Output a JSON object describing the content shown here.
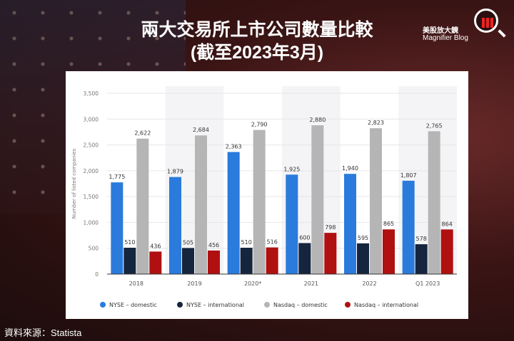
{
  "header": {
    "title_line1": "兩大交易所上市公司數量比較",
    "title_line2": "(截至2023年3月)"
  },
  "logo": {
    "cn": "美股放大鏡",
    "en": "Magnifier Blog"
  },
  "source": "資料來源：Statista",
  "chart_data": {
    "type": "bar",
    "ylabel": "Number of listed companies",
    "ylim": [
      0,
      3500
    ],
    "yticks": [
      0,
      500,
      1000,
      1500,
      2000,
      2500,
      3000,
      3500
    ],
    "ytick_labels": [
      "0",
      "500",
      "1,000",
      "1,500",
      "2,000",
      "2,500",
      "3,000",
      "3,500"
    ],
    "grid": true,
    "legend_position": "bottom",
    "categories": [
      "2018",
      "2019",
      "2020*",
      "2021",
      "2022",
      "Q1 2023"
    ],
    "series": [
      {
        "name": "NYSE - domestic",
        "color": "#2a7bdc",
        "values": [
          1775,
          1879,
          2363,
          1925,
          1940,
          1807
        ]
      },
      {
        "name": "NYSE - international",
        "color": "#15253d",
        "values": [
          510,
          505,
          510,
          600,
          595,
          578
        ]
      },
      {
        "name": "Nasdaq - domestic",
        "color": "#b5b5b5",
        "values": [
          2622,
          2684,
          2790,
          2880,
          2823,
          2765
        ]
      },
      {
        "name": "Nasdaq - international",
        "color": "#b01010",
        "values": [
          436,
          456,
          516,
          798,
          865,
          864
        ]
      }
    ]
  }
}
